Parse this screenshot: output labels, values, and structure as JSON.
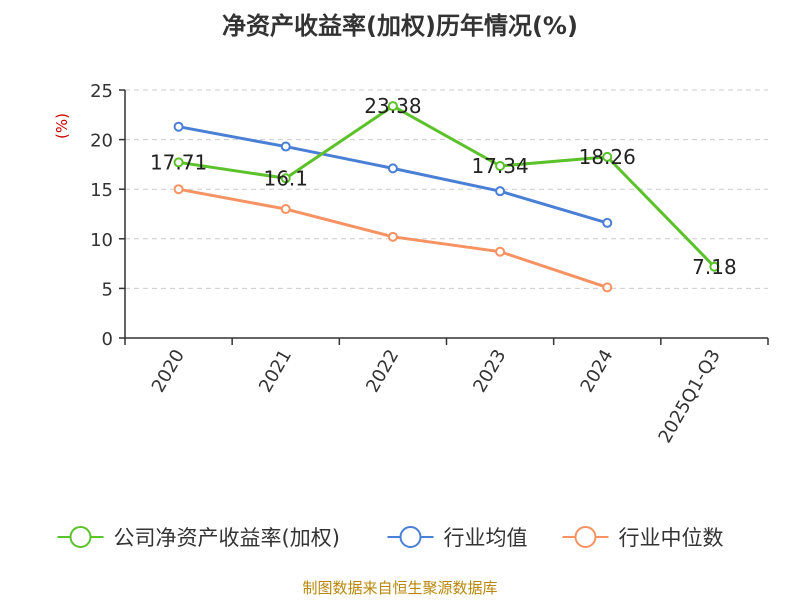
{
  "chart_data": {
    "type": "line",
    "title": "净资产收益率(加权)历年情况(%)",
    "ylabel": "(%)",
    "xlabel": "",
    "ylim": [
      0,
      25
    ],
    "yticks": [
      "0",
      "5",
      "10",
      "15",
      "20",
      "25"
    ],
    "categories": [
      "2020",
      "2021",
      "2022",
      "2023",
      "2024",
      "2025Q1-Q3"
    ],
    "grid": true,
    "legend_position": "bottom",
    "series": [
      {
        "name": "公司净资产收益率(加权)",
        "color": "#5cc22b",
        "values": [
          17.71,
          16.1,
          23.38,
          17.34,
          18.26,
          7.18
        ],
        "labels": [
          "17.71",
          "16.1",
          "23.38",
          "17.34",
          "18.26",
          "7.18"
        ]
      },
      {
        "name": "行业均值",
        "color": "#4a7fd6",
        "values": [
          21.3,
          19.3,
          17.1,
          14.8,
          11.6,
          null
        ]
      },
      {
        "name": "行业中位数",
        "color": "#f79262",
        "values": [
          15.0,
          13.0,
          10.2,
          8.7,
          5.1,
          null
        ]
      }
    ]
  },
  "source": "制图数据来自恒生聚源数据库"
}
